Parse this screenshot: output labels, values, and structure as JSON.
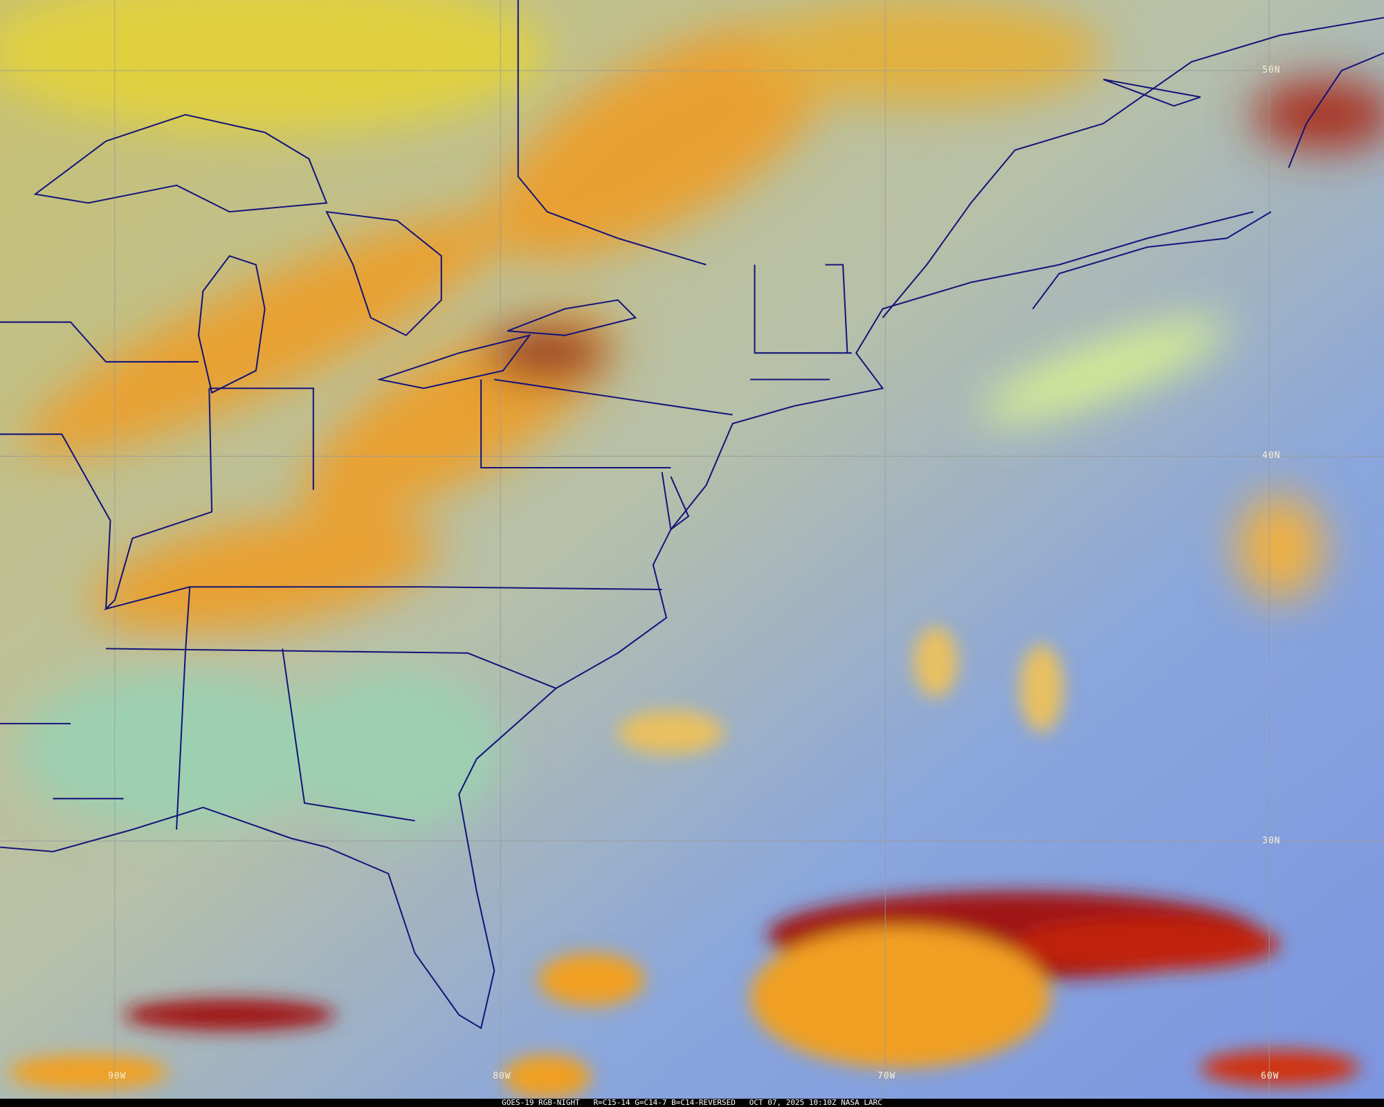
{
  "caption": {
    "satellite": "GOES-19 RGB-NIGHT",
    "bands": "R=C15-14 G=C14-7 B=C14-REVERSED",
    "datetime": "OCT 07, 2025 10:10Z",
    "source": "NASA LARC"
  },
  "latitude_labels": [
    "50N",
    "40N",
    "30N"
  ],
  "longitude_labels": [
    "90W",
    "80W",
    "70W",
    "60W"
  ],
  "colors": {
    "ocean_clear": "#7f9ee0",
    "land_clear": "#b6c0a0",
    "high_cloud": "#e8a030",
    "deep_cloud": "#a01818",
    "low_cloud": "#c8d890",
    "borders": "#14147a",
    "graticule": "#9a9a9a"
  }
}
